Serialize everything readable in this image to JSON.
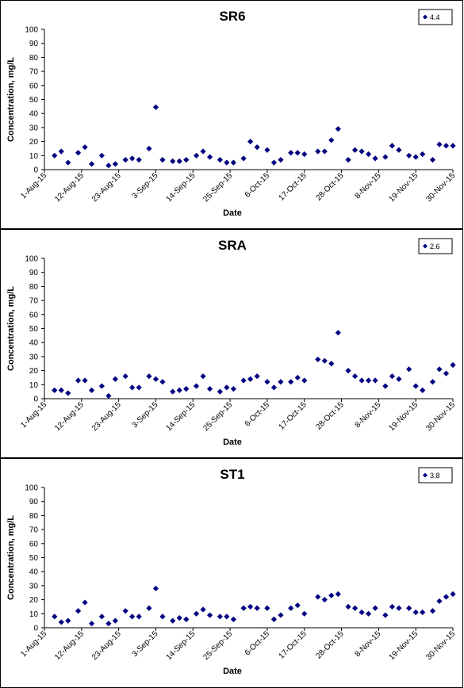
{
  "chart_data": [
    {
      "type": "scatter",
      "title": "SR6",
      "xlabel": "Date",
      "ylabel": "Concentration, mg/L",
      "xlim": [
        "2015-08-01",
        "2015-11-30"
      ],
      "ylim": [
        0,
        100
      ],
      "yticks": [
        0,
        10,
        20,
        30,
        40,
        50,
        60,
        70,
        80,
        90,
        100
      ],
      "xtick_labels": [
        "1-Aug-15",
        "12-Aug-15",
        "23-Aug-15",
        "3-Sep-15",
        "14-Sep-15",
        "25-Sep-15",
        "6-Oct-15",
        "17-Oct-15",
        "28-Oct-15",
        "8-Nov-15",
        "19-Nov-15",
        "30-Nov-15"
      ],
      "grid": false,
      "legend_position": "top-right",
      "marker_color": "#000080",
      "series": [
        {
          "name": "4.4",
          "points": [
            [
              "2015-08-04",
              10
            ],
            [
              "2015-08-06",
              13
            ],
            [
              "2015-08-08",
              5
            ],
            [
              "2015-08-11",
              12
            ],
            [
              "2015-08-13",
              16
            ],
            [
              "2015-08-15",
              4
            ],
            [
              "2015-08-18",
              10
            ],
            [
              "2015-08-20",
              3
            ],
            [
              "2015-08-22",
              4
            ],
            [
              "2015-08-25",
              7
            ],
            [
              "2015-08-27",
              8
            ],
            [
              "2015-08-29",
              7
            ],
            [
              "2015-09-01",
              15
            ],
            [
              "2015-09-03",
              44.5
            ],
            [
              "2015-09-05",
              7
            ],
            [
              "2015-09-08",
              6
            ],
            [
              "2015-09-10",
              6
            ],
            [
              "2015-09-12",
              7
            ],
            [
              "2015-09-15",
              10
            ],
            [
              "2015-09-17",
              13
            ],
            [
              "2015-09-19",
              9
            ],
            [
              "2015-09-22",
              7
            ],
            [
              "2015-09-24",
              5
            ],
            [
              "2015-09-26",
              5
            ],
            [
              "2015-09-29",
              8
            ],
            [
              "2015-10-01",
              20
            ],
            [
              "2015-10-03",
              16
            ],
            [
              "2015-10-06",
              14
            ],
            [
              "2015-10-08",
              5
            ],
            [
              "2015-10-10",
              7
            ],
            [
              "2015-10-13",
              12
            ],
            [
              "2015-10-15",
              12
            ],
            [
              "2015-10-17",
              11
            ],
            [
              "2015-10-21",
              13
            ],
            [
              "2015-10-23",
              13
            ],
            [
              "2015-10-25",
              21
            ],
            [
              "2015-10-27",
              29
            ],
            [
              "2015-10-30",
              7
            ],
            [
              "2015-11-01",
              14
            ],
            [
              "2015-11-03",
              13
            ],
            [
              "2015-11-05",
              11
            ],
            [
              "2015-11-07",
              8
            ],
            [
              "2015-11-10",
              9
            ],
            [
              "2015-11-12",
              17
            ],
            [
              "2015-11-14",
              14
            ],
            [
              "2015-11-17",
              10
            ],
            [
              "2015-11-19",
              9
            ],
            [
              "2015-11-21",
              11
            ],
            [
              "2015-11-24",
              7
            ],
            [
              "2015-11-26",
              18
            ],
            [
              "2015-11-28",
              17
            ],
            [
              "2015-11-30",
              17
            ]
          ]
        }
      ]
    },
    {
      "type": "scatter",
      "title": "SRA",
      "xlabel": "Date",
      "ylabel": "Concentration, mg/L",
      "xlim": [
        "2015-08-01",
        "2015-11-30"
      ],
      "ylim": [
        0,
        100
      ],
      "yticks": [
        0,
        10,
        20,
        30,
        40,
        50,
        60,
        70,
        80,
        90,
        100
      ],
      "xtick_labels": [
        "1-Aug-15",
        "12-Aug-15",
        "23-Aug-15",
        "3-Sep-15",
        "14-Sep-15",
        "25-Sep-15",
        "6-Oct-15",
        "17-Oct-15",
        "28-Oct-15",
        "8-Nov-15",
        "19-Nov-15",
        "30-Nov-15"
      ],
      "grid": false,
      "legend_position": "top-right",
      "marker_color": "#000080",
      "series": [
        {
          "name": "2.6",
          "points": [
            [
              "2015-08-04",
              6
            ],
            [
              "2015-08-06",
              6
            ],
            [
              "2015-08-08",
              4
            ],
            [
              "2015-08-11",
              13
            ],
            [
              "2015-08-13",
              13
            ],
            [
              "2015-08-15",
              6
            ],
            [
              "2015-08-18",
              9
            ],
            [
              "2015-08-20",
              2
            ],
            [
              "2015-08-22",
              14
            ],
            [
              "2015-08-25",
              16
            ],
            [
              "2015-08-27",
              8
            ],
            [
              "2015-08-29",
              8
            ],
            [
              "2015-09-01",
              16
            ],
            [
              "2015-09-03",
              14
            ],
            [
              "2015-09-05",
              12
            ],
            [
              "2015-09-08",
              5
            ],
            [
              "2015-09-10",
              6
            ],
            [
              "2015-09-12",
              7
            ],
            [
              "2015-09-15",
              9
            ],
            [
              "2015-09-17",
              16
            ],
            [
              "2015-09-19",
              7
            ],
            [
              "2015-09-22",
              5
            ],
            [
              "2015-09-24",
              8
            ],
            [
              "2015-09-26",
              7
            ],
            [
              "2015-09-29",
              13
            ],
            [
              "2015-10-01",
              14
            ],
            [
              "2015-10-03",
              16
            ],
            [
              "2015-10-06",
              12
            ],
            [
              "2015-10-08",
              8
            ],
            [
              "2015-10-10",
              12
            ],
            [
              "2015-10-13",
              12
            ],
            [
              "2015-10-15",
              15
            ],
            [
              "2015-10-17",
              13
            ],
            [
              "2015-10-21",
              28
            ],
            [
              "2015-10-23",
              27
            ],
            [
              "2015-10-25",
              25
            ],
            [
              "2015-10-27",
              47
            ],
            [
              "2015-10-30",
              20
            ],
            [
              "2015-11-01",
              16
            ],
            [
              "2015-11-03",
              13
            ],
            [
              "2015-11-05",
              13
            ],
            [
              "2015-11-07",
              13
            ],
            [
              "2015-11-10",
              9
            ],
            [
              "2015-11-12",
              16
            ],
            [
              "2015-11-14",
              14
            ],
            [
              "2015-11-17",
              21
            ],
            [
              "2015-11-19",
              9
            ],
            [
              "2015-11-21",
              6
            ],
            [
              "2015-11-24",
              12
            ],
            [
              "2015-11-26",
              21
            ],
            [
              "2015-11-28",
              18
            ],
            [
              "2015-11-30",
              24
            ]
          ]
        }
      ]
    },
    {
      "type": "scatter",
      "title": "ST1",
      "xlabel": "Date",
      "ylabel": "Concentration, mg/L",
      "xlim": [
        "2015-08-01",
        "2015-11-30"
      ],
      "ylim": [
        0,
        100
      ],
      "yticks": [
        0,
        10,
        20,
        30,
        40,
        50,
        60,
        70,
        80,
        90,
        100
      ],
      "xtick_labels": [
        "1-Aug-15",
        "12-Aug-15",
        "23-Aug-15",
        "3-Sep-15",
        "14-Sep-15",
        "25-Sep-15",
        "6-Oct-15",
        "17-Oct-15",
        "28-Oct-15",
        "8-Nov-15",
        "19-Nov-15",
        "30-Nov-15"
      ],
      "grid": false,
      "legend_position": "top-right",
      "marker_color": "#000080",
      "series": [
        {
          "name": "3.8",
          "points": [
            [
              "2015-08-04",
              8
            ],
            [
              "2015-08-06",
              4
            ],
            [
              "2015-08-08",
              5
            ],
            [
              "2015-08-11",
              12
            ],
            [
              "2015-08-13",
              18
            ],
            [
              "2015-08-15",
              3
            ],
            [
              "2015-08-18",
              8
            ],
            [
              "2015-08-20",
              3
            ],
            [
              "2015-08-22",
              5
            ],
            [
              "2015-08-25",
              12
            ],
            [
              "2015-08-27",
              8
            ],
            [
              "2015-08-29",
              8
            ],
            [
              "2015-09-01",
              14
            ],
            [
              "2015-09-03",
              28
            ],
            [
              "2015-09-05",
              8
            ],
            [
              "2015-09-08",
              5
            ],
            [
              "2015-09-10",
              7
            ],
            [
              "2015-09-12",
              6
            ],
            [
              "2015-09-15",
              10
            ],
            [
              "2015-09-17",
              13
            ],
            [
              "2015-09-19",
              9
            ],
            [
              "2015-09-22",
              8
            ],
            [
              "2015-09-24",
              8
            ],
            [
              "2015-09-26",
              6
            ],
            [
              "2015-09-29",
              14
            ],
            [
              "2015-10-01",
              15
            ],
            [
              "2015-10-03",
              14
            ],
            [
              "2015-10-06",
              14
            ],
            [
              "2015-10-08",
              6
            ],
            [
              "2015-10-10",
              9
            ],
            [
              "2015-10-13",
              14
            ],
            [
              "2015-10-15",
              16
            ],
            [
              "2015-10-17",
              10
            ],
            [
              "2015-10-21",
              22
            ],
            [
              "2015-10-23",
              20
            ],
            [
              "2015-10-25",
              23
            ],
            [
              "2015-10-27",
              24
            ],
            [
              "2015-10-30",
              15
            ],
            [
              "2015-11-01",
              14
            ],
            [
              "2015-11-03",
              11
            ],
            [
              "2015-11-05",
              10
            ],
            [
              "2015-11-07",
              14
            ],
            [
              "2015-11-10",
              9
            ],
            [
              "2015-11-12",
              15
            ],
            [
              "2015-11-14",
              14
            ],
            [
              "2015-11-17",
              14
            ],
            [
              "2015-11-19",
              11
            ],
            [
              "2015-11-21",
              11
            ],
            [
              "2015-11-24",
              12
            ],
            [
              "2015-11-26",
              19
            ],
            [
              "2015-11-28",
              22
            ],
            [
              "2015-11-30",
              24
            ]
          ]
        }
      ]
    }
  ]
}
